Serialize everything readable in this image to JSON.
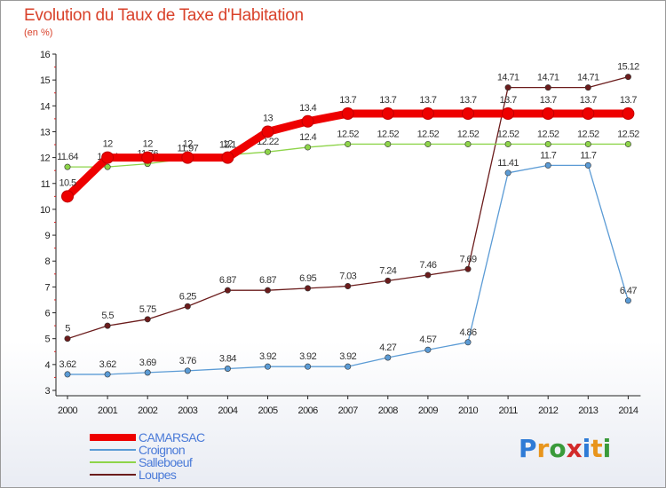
{
  "header": {
    "title": "Evolution du Taux de Taxe d'Habitation",
    "unit": "(en %)"
  },
  "logo": {
    "letters": [
      "P",
      "r",
      "o",
      "x",
      "i",
      "t",
      "i"
    ],
    "colors": [
      "#2e7bd6",
      "#e8951c",
      "#3a9a3a",
      "#d22a2a",
      "#2e7bd6",
      "#e8951c",
      "#3a9a3a"
    ]
  },
  "chart_data": {
    "type": "line",
    "x": [
      "2000",
      "2001",
      "2002",
      "2003",
      "2004",
      "2005",
      "2006",
      "2007",
      "2008",
      "2009",
      "2010",
      "2011",
      "2012",
      "2013",
      "2014"
    ],
    "y_ticks": [
      "3",
      "4",
      "5",
      "6",
      "7",
      "8",
      "9",
      "10",
      "11",
      "12",
      "13",
      "14",
      "15",
      "16"
    ],
    "ylim": [
      3,
      16
    ],
    "grid": false,
    "legend_position": "bottom-left",
    "series": [
      {
        "name": "Loupes",
        "color": "#6b1c1c",
        "values": [
          5,
          5.5,
          5.75,
          6.25,
          6.87,
          6.87,
          6.95,
          7.03,
          7.24,
          7.46,
          7.69,
          14.71,
          14.71,
          14.71,
          15.12
        ],
        "labels": [
          "5",
          "5.5",
          "5.75",
          "6.25",
          "6.87",
          "6.87",
          "6.95",
          "7.03",
          "7.24",
          "7.46",
          "7.69",
          "14.71",
          "14.71",
          "14.71",
          "15.12"
        ]
      },
      {
        "name": "Salleboeuf",
        "color": "#8ed44a",
        "values": [
          11.64,
          11.64,
          11.76,
          11.97,
          12.1,
          12.22,
          12.4,
          12.52,
          12.52,
          12.52,
          12.52,
          12.52,
          12.52,
          12.52,
          12.52
        ],
        "labels": [
          "11.64",
          "11.64",
          "11.76",
          "11.97",
          "12.1",
          "12.22",
          "12.4",
          "12.52",
          "12.52",
          "12.52",
          "12.52",
          "12.52",
          "12.52",
          "12.52",
          "12.52"
        ]
      },
      {
        "name": "Croignon",
        "color": "#5b9bd5",
        "values": [
          3.62,
          3.62,
          3.69,
          3.76,
          3.84,
          3.92,
          3.92,
          3.92,
          4.27,
          4.57,
          4.86,
          11.41,
          11.7,
          11.7,
          6.47
        ],
        "labels": [
          "3.62",
          "3.62",
          "3.69",
          "3.76",
          "3.84",
          "3.92",
          "3.92",
          "3.92",
          "4.27",
          "4.57",
          "4.86",
          "11.41",
          "11.7",
          "11.7",
          "6.47"
        ]
      },
      {
        "name": "CAMARSAC",
        "color": "#ee0000",
        "values": [
          10.5,
          12,
          12,
          12,
          12,
          13,
          13.4,
          13.7,
          13.7,
          13.7,
          13.7,
          13.7,
          13.7,
          13.7,
          13.7
        ],
        "labels": [
          "10.5",
          "12",
          "12",
          "12",
          "12",
          "13",
          "13.4",
          "13.7",
          "13.7",
          "13.7",
          "13.7",
          "13.7",
          "13.7",
          "13.7",
          "13.7"
        ]
      }
    ],
    "legend_order": [
      {
        "name": "CAMARSAC",
        "color": "#ee0000"
      },
      {
        "name": "Croignon",
        "color": "#5b9bd5"
      },
      {
        "name": "Salleboeuf",
        "color": "#8ed44a"
      },
      {
        "name": "Loupes",
        "color": "#6b1c1c"
      }
    ]
  }
}
